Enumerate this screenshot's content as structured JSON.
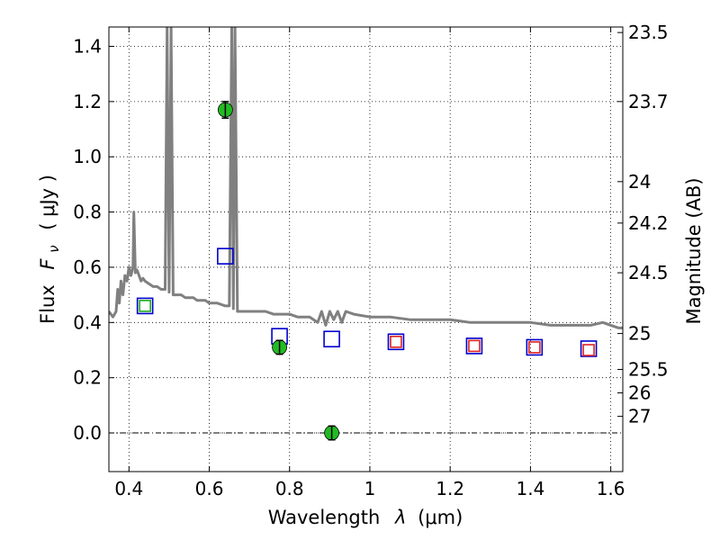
{
  "chart_data": {
    "type": "scatter",
    "xlabel_text": "Wavelength",
    "xlabel_symbol": "λ",
    "xlabel_unit": "(μm)",
    "ylabel_text": "Flux",
    "ylabel_symbol": "F",
    "ylabel_subscript": "ν",
    "ylabel_unit": "( μJy )",
    "y2label": "Magnitude (AB)",
    "xlim": [
      0.35,
      1.63
    ],
    "ylim": [
      -0.14,
      1.47
    ],
    "grid": true,
    "x_ticks": [
      {
        "value": 0.4,
        "label": "0.4"
      },
      {
        "value": 0.6,
        "label": "0.6"
      },
      {
        "value": 0.8,
        "label": "0.8"
      },
      {
        "value": 1.0,
        "label": "1"
      },
      {
        "value": 1.2,
        "label": "1.2"
      },
      {
        "value": 1.4,
        "label": "1.4"
      },
      {
        "value": 1.6,
        "label": "1.6"
      }
    ],
    "y_ticks": [
      {
        "value": 0.0,
        "label": "0.0"
      },
      {
        "value": 0.2,
        "label": "0.2"
      },
      {
        "value": 0.4,
        "label": "0.4"
      },
      {
        "value": 0.6,
        "label": "0.6"
      },
      {
        "value": 0.8,
        "label": "0.8"
      },
      {
        "value": 1.0,
        "label": "1.0"
      },
      {
        "value": 1.2,
        "label": "1.2"
      },
      {
        "value": 1.4,
        "label": "1.4"
      }
    ],
    "y2_ticks": [
      {
        "flux": 1.45,
        "label": "23.5"
      },
      {
        "flux": 1.2,
        "label": "23.7"
      },
      {
        "flux": 0.91,
        "label": "24"
      },
      {
        "flux": 0.76,
        "label": "24.2"
      },
      {
        "flux": 0.58,
        "label": "24.5"
      },
      {
        "flux": 0.36,
        "label": "25"
      },
      {
        "flux": 0.23,
        "label": "25.5"
      },
      {
        "flux": 0.145,
        "label": "26"
      },
      {
        "flux": 0.06,
        "label": "27"
      }
    ],
    "series": [
      {
        "kind": "model_spectrum",
        "color": "#808080",
        "x": [
          0.35,
          0.36,
          0.368,
          0.372,
          0.376,
          0.38,
          0.385,
          0.39,
          0.395,
          0.4,
          0.405,
          0.41,
          0.412,
          0.416,
          0.42,
          0.425,
          0.43,
          0.435,
          0.44,
          0.45,
          0.46,
          0.47,
          0.48,
          0.49,
          0.495,
          0.5,
          0.505,
          0.51,
          0.52,
          0.53,
          0.54,
          0.55,
          0.56,
          0.57,
          0.58,
          0.59,
          0.6,
          0.62,
          0.64,
          0.65,
          0.656,
          0.66,
          0.664,
          0.67,
          0.68,
          0.7,
          0.72,
          0.74,
          0.76,
          0.78,
          0.8,
          0.82,
          0.84,
          0.85,
          0.86,
          0.87,
          0.88,
          0.89,
          0.9,
          0.91,
          0.92,
          0.93,
          0.94,
          0.96,
          1.0,
          1.05,
          1.1,
          1.15,
          1.2,
          1.25,
          1.3,
          1.35,
          1.4,
          1.45,
          1.5,
          1.55,
          1.58,
          1.6,
          1.62,
          1.63
        ],
        "y": [
          0.44,
          0.42,
          0.44,
          0.52,
          0.47,
          0.55,
          0.5,
          0.57,
          0.55,
          0.6,
          0.57,
          0.6,
          0.8,
          0.58,
          0.59,
          0.57,
          0.55,
          0.56,
          0.55,
          0.54,
          0.53,
          0.53,
          0.52,
          0.52,
          1.47,
          0.51,
          1.47,
          0.5,
          0.5,
          0.5,
          0.49,
          0.49,
          0.49,
          0.48,
          0.48,
          0.48,
          0.47,
          0.47,
          0.46,
          0.46,
          1.47,
          0.45,
          1.47,
          0.44,
          0.44,
          0.44,
          0.44,
          0.44,
          0.43,
          0.43,
          0.43,
          0.42,
          0.42,
          0.42,
          0.41,
          0.4,
          0.44,
          0.39,
          0.44,
          0.41,
          0.44,
          0.4,
          0.44,
          0.43,
          0.42,
          0.42,
          0.41,
          0.41,
          0.41,
          0.4,
          0.4,
          0.4,
          0.4,
          0.39,
          0.39,
          0.39,
          0.4,
          0.39,
          0.38,
          0.38
        ]
      },
      {
        "kind": "model_photometry_blue",
        "color": "#0000cc",
        "x": [
          0.44,
          0.64,
          0.775,
          0.905,
          1.065,
          1.26,
          1.41,
          1.545
        ],
        "y": [
          0.46,
          0.64,
          0.35,
          0.34,
          0.33,
          0.315,
          0.31,
          0.305
        ]
      },
      {
        "kind": "model_photometry_red",
        "color": "#dd2222",
        "x": [
          1.065,
          1.26,
          1.41,
          1.545
        ],
        "y": [
          0.33,
          0.315,
          0.31,
          0.3
        ]
      },
      {
        "kind": "model_photometry_green",
        "color": "#22aa22",
        "x": [
          0.44
        ],
        "y": [
          0.46
        ]
      },
      {
        "kind": "observed",
        "color": "#22bb22",
        "x": [
          0.64,
          0.775,
          0.905
        ],
        "y": [
          1.17,
          0.31,
          0.0
        ],
        "err": [
          0.03,
          0.025,
          0.025
        ]
      }
    ]
  }
}
